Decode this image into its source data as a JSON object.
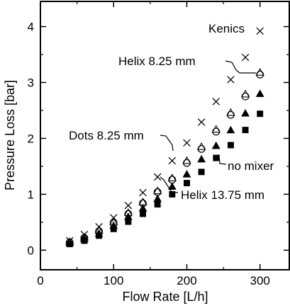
{
  "chart_data": {
    "type": "scatter",
    "title": "",
    "xlabel": "Flow Rate [L/h]",
    "ylabel": "Pressure Loss [bar]",
    "xlim": [
      0,
      340
    ],
    "ylim": [
      -0.35,
      4.45
    ],
    "xticks": [
      0,
      100,
      200,
      300
    ],
    "yticks": [
      0,
      1,
      2,
      3,
      4
    ],
    "x_minor_ticks": [
      50,
      150,
      250
    ],
    "y_minor_ticks": [
      0.5,
      1.5,
      2.5,
      3.5
    ],
    "grid": false,
    "legend": "none",
    "x": [
      40,
      60,
      80,
      100,
      120,
      140,
      160,
      180,
      200,
      220,
      240,
      260,
      280,
      300
    ],
    "series": [
      {
        "name": "Kenics",
        "marker": "x",
        "values": [
          0.17,
          0.28,
          0.42,
          0.58,
          0.8,
          1.03,
          1.31,
          1.6,
          1.92,
          2.29,
          2.66,
          3.05,
          3.45,
          3.92
        ]
      },
      {
        "name": "Helix 8.25 mm",
        "marker": "open-circle",
        "values": [
          0.14,
          0.22,
          0.34,
          0.49,
          0.65,
          0.84,
          1.04,
          1.26,
          1.56,
          1.81,
          2.12,
          2.42,
          2.75,
          3.14
        ]
      },
      {
        "name": "Dots 8.25 mm",
        "marker": "open-triangle",
        "values": [
          0.15,
          0.23,
          0.35,
          0.5,
          0.67,
          0.86,
          1.06,
          1.29,
          1.6,
          1.85,
          2.16,
          2.46,
          2.79,
          3.18
        ]
      },
      {
        "name": "Helix 13.75 mm",
        "marker": "filled-triangle",
        "values": [
          0.13,
          0.2,
          0.3,
          0.44,
          0.6,
          0.75,
          0.92,
          1.14,
          1.36,
          1.63,
          1.87,
          2.15,
          2.45,
          2.8
        ]
      },
      {
        "name": "no mixer",
        "marker": "filled-square",
        "values": [
          0.11,
          0.17,
          0.26,
          0.38,
          0.51,
          0.65,
          0.82,
          1.0,
          1.2,
          1.4,
          1.65,
          1.88,
          2.15,
          2.44
        ]
      }
    ],
    "annotations": [
      {
        "text": "Kenics",
        "target_series": "Kenics",
        "target_x": 300
      },
      {
        "text": "Helix 8.25 mm",
        "target_series": "Helix 8.25 mm",
        "target_x": 300
      },
      {
        "text": "Dots 8.25 mm",
        "target_series": "Dots 8.25 mm",
        "target_x": 200
      },
      {
        "text": "no mixer",
        "target_series": "no mixer",
        "target_x": 240
      },
      {
        "text": "Helix 13.75 mm",
        "target_series": "Helix 13.75 mm",
        "target_x": 180
      }
    ]
  }
}
